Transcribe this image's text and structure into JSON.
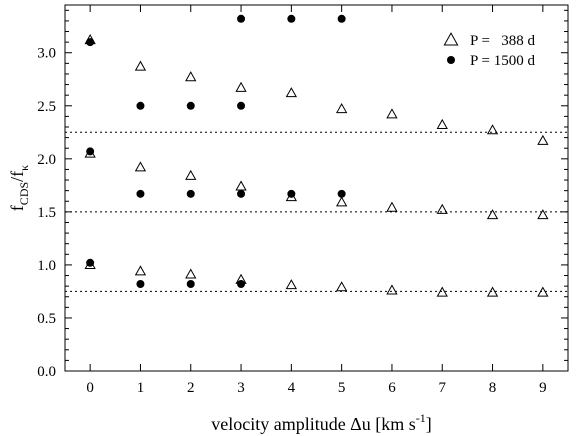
{
  "chart_data": {
    "type": "scatter",
    "xlabel_main": "velocity amplitude Δu [km s",
    "xlabel_sup": "-1",
    "xlabel_end": "]",
    "ylabel_main": "f",
    "ylabel_sub1": "CDS",
    "ylabel_mid": "/f",
    "ylabel_sub2": "κ",
    "xlim": [
      -0.5,
      9.5
    ],
    "ylim": [
      0.0,
      3.45
    ],
    "x_ticks": [
      0,
      1,
      2,
      3,
      4,
      5,
      6,
      7,
      8,
      9
    ],
    "x_tick_labels": [
      "0",
      "1",
      "2",
      "3",
      "4",
      "5",
      "6",
      "7",
      "8",
      "9"
    ],
    "y_ticks": [
      0.0,
      0.5,
      1.0,
      1.5,
      2.0,
      2.5,
      3.0
    ],
    "y_tick_labels": [
      "0.0",
      "0.5",
      "1.0",
      "1.5",
      "2.0",
      "2.5",
      "3.0"
    ],
    "grid": false,
    "legend_position": "top-right",
    "reference_lines": [
      0.75,
      1.5,
      2.25
    ],
    "series": [
      {
        "name": "P =   388 d",
        "marker": "open-triangle",
        "points": [
          [
            0,
            3.12
          ],
          [
            1,
            2.87
          ],
          [
            2,
            2.77
          ],
          [
            3,
            2.67
          ],
          [
            4,
            2.62
          ],
          [
            5,
            2.47
          ],
          [
            6,
            2.42
          ],
          [
            7,
            2.32
          ],
          [
            8,
            2.27
          ],
          [
            9,
            2.17
          ],
          [
            0,
            2.05
          ],
          [
            1,
            1.92
          ],
          [
            2,
            1.84
          ],
          [
            3,
            1.74
          ],
          [
            4,
            1.64
          ],
          [
            5,
            1.59
          ],
          [
            6,
            1.54
          ],
          [
            7,
            1.52
          ],
          [
            8,
            1.47
          ],
          [
            9,
            1.47
          ],
          [
            0,
            1.0
          ],
          [
            1,
            0.94
          ],
          [
            2,
            0.91
          ],
          [
            3,
            0.86
          ],
          [
            4,
            0.81
          ],
          [
            5,
            0.79
          ],
          [
            6,
            0.76
          ],
          [
            7,
            0.74
          ],
          [
            8,
            0.74
          ],
          [
            9,
            0.74
          ]
        ]
      },
      {
        "name": "P = 1500 d",
        "marker": "filled-circle",
        "points": [
          [
            0,
            3.1
          ],
          [
            1,
            2.5
          ],
          [
            2,
            2.5
          ],
          [
            3,
            2.5
          ],
          [
            3,
            3.32
          ],
          [
            4,
            3.32
          ],
          [
            5,
            3.32
          ],
          [
            0,
            2.07
          ],
          [
            1,
            1.67
          ],
          [
            2,
            1.67
          ],
          [
            3,
            1.67
          ],
          [
            4,
            1.67
          ],
          [
            5,
            1.67
          ],
          [
            0,
            1.02
          ],
          [
            1,
            0.82
          ],
          [
            2,
            0.82
          ],
          [
            3,
            0.82
          ]
        ]
      }
    ]
  }
}
